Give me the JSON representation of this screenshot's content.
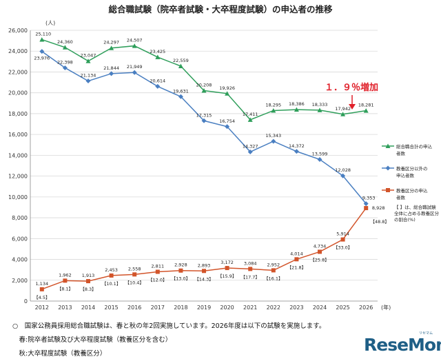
{
  "chart_data": {
    "type": "line",
    "title": "総合職試験（院卒者試験・大卒程度試験）の申込者の推移",
    "unit_label": "(人)",
    "x_unit_label": "(年)",
    "categories": [
      "2012",
      "2013",
      "2014",
      "2015",
      "2016",
      "2017",
      "2018",
      "2019",
      "2020",
      "2021",
      "2022",
      "2023",
      "2024",
      "2025",
      "2026"
    ],
    "ylim": [
      0,
      26000
    ],
    "yticks": [
      "0",
      "2,000",
      "4,000",
      "6,000",
      "8,000",
      "10,000",
      "12,000",
      "14,000",
      "16,000",
      "18,000",
      "20,000",
      "22,000",
      "24,000",
      "26,000"
    ],
    "grid": true,
    "series": [
      {
        "name": "総合職合計の申込者数",
        "color": "#2e9e5a",
        "marker": "triangle",
        "values": [
          25110,
          24360,
          23047,
          24297,
          24507,
          23425,
          22559,
          20208,
          19926,
          17411,
          18295,
          18386,
          18333,
          17942,
          18281
        ],
        "labels": [
          "25,110",
          "24,360",
          "23,047",
          "24,297",
          "24,507",
          "23,425",
          "22,559",
          "20,208",
          "19,926",
          "17,411",
          "18,295",
          "18,386",
          "18,333",
          "17,942",
          "18,281"
        ]
      },
      {
        "name": "教養区分以外の申込者数",
        "color": "#4a7fc1",
        "marker": "diamond",
        "values": [
          23976,
          22398,
          21134,
          21844,
          21949,
          20614,
          19631,
          17315,
          16754,
          14327,
          15343,
          14372,
          13599,
          12028,
          9353
        ],
        "labels": [
          "23,976",
          "22,398",
          "21,134",
          "21,844",
          "21,949",
          "20,614",
          "19,631",
          "17,315",
          "16,754",
          "14,327",
          "15,343",
          "14,372",
          "13,599",
          "12,028",
          "9,353"
        ]
      },
      {
        "name": "教養区分の申込者数",
        "color": "#d2542a",
        "marker": "square",
        "values": [
          1134,
          1962,
          1913,
          2453,
          2558,
          2811,
          2928,
          2893,
          3172,
          3084,
          2952,
          4014,
          4734,
          5914,
          8928
        ],
        "labels": [
          "1,134",
          "1,962",
          "1,913",
          "2,453",
          "2,558",
          "2,811",
          "2,928",
          "2,893",
          "3,172",
          "3,084",
          "2,952",
          "4,014",
          "4,734",
          "5,914",
          "8,928"
        ]
      }
    ],
    "ratio_labels": [
      "【4.5】",
      "【8.1】",
      "【8.3】",
      "【10.1】",
      "【10.4】",
      "【12.0】",
      "【13.0】",
      "【14.3】",
      "【15.9】",
      "【17.7】",
      "【16.1】",
      "【21.8】",
      "【25.8】",
      "【33.0】",
      "【48.8】"
    ],
    "ratio_note": [
      "【 】は、総合職試験",
      "全体に占める教養区分",
      "の割合(%)"
    ],
    "annotation": {
      "text": "１．９％増加",
      "color": "#e0202a"
    }
  },
  "notes": [
    "○　国家公務員採用総合職試験は、春と秋の年2回実施しています。2026年度は以下の試験を実施します。",
    "　春:院卒者試験及び大卒程度試験（教養区分を含む）",
    "　秋:大卒程度試験（教養区分）"
  ],
  "logo": {
    "main": "ReseMom",
    "sub": "リセマム"
  }
}
